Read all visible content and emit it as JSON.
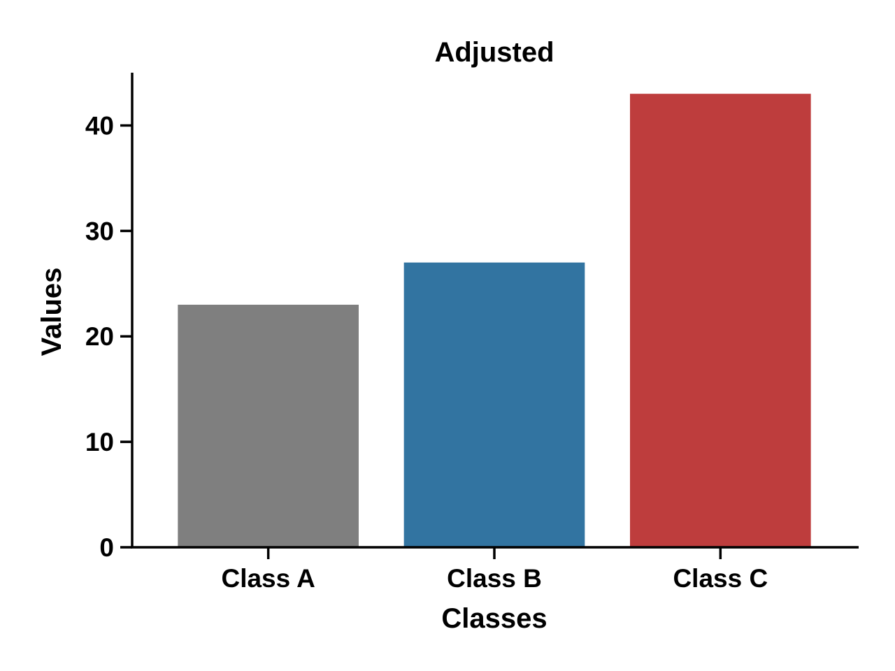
{
  "chart_data": {
    "type": "bar",
    "title": "Adjusted",
    "xlabel": "Classes",
    "ylabel": "Values",
    "categories": [
      "Class A",
      "Class B",
      "Class C"
    ],
    "values": [
      23,
      27,
      43
    ],
    "colors": [
      "#7f7f7f",
      "#3274a1",
      "#be3d3d"
    ],
    "ylim": [
      0,
      45
    ],
    "yticks": [
      0,
      10,
      20,
      30,
      40
    ],
    "grid": false
  }
}
